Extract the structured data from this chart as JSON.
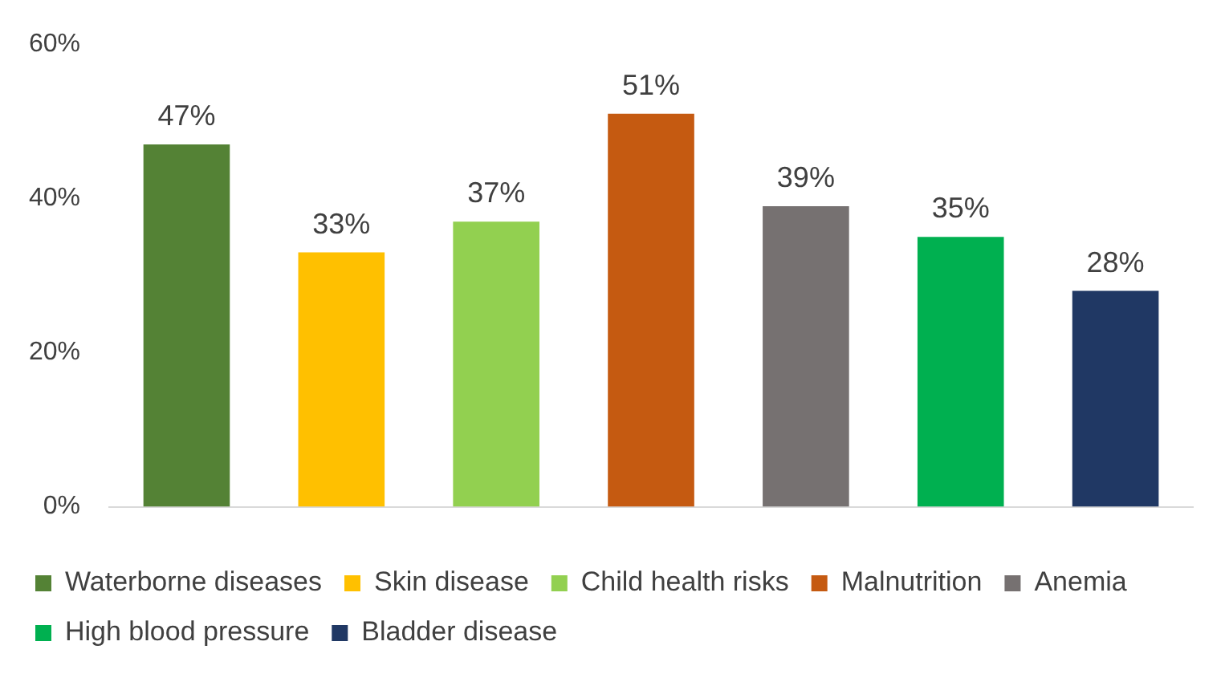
{
  "chart_data": {
    "type": "bar",
    "categories": [
      null,
      null,
      null,
      null,
      null,
      null,
      null
    ],
    "series": [
      {
        "name": "Waterborne diseases",
        "color": "#548235",
        "values": [
          47,
          null,
          null,
          null,
          null,
          null,
          null
        ],
        "value_labels": [
          "47%",
          null,
          null,
          null,
          null,
          null,
          null
        ]
      },
      {
        "name": "Skin disease",
        "color": "#ffc000",
        "values": [
          null,
          33,
          null,
          null,
          null,
          null,
          null
        ],
        "value_labels": [
          null,
          "33%",
          null,
          null,
          null,
          null,
          null
        ]
      },
      {
        "name": "Child health risks",
        "color": "#92d050",
        "values": [
          null,
          null,
          37,
          null,
          null,
          null,
          null
        ],
        "value_labels": [
          null,
          null,
          "37%",
          null,
          null,
          null,
          null
        ]
      },
      {
        "name": "Malnutrition",
        "color": "#c55a11",
        "values": [
          null,
          null,
          null,
          51,
          null,
          null,
          null
        ],
        "value_labels": [
          null,
          null,
          null,
          "51%",
          null,
          null,
          null
        ]
      },
      {
        "name": "Anemia",
        "color": "#767171",
        "values": [
          null,
          null,
          null,
          null,
          39,
          null,
          null
        ],
        "value_labels": [
          null,
          null,
          null,
          null,
          "39%",
          null,
          null
        ]
      },
      {
        "name": "High blood pressure",
        "color": "#00b050",
        "values": [
          null,
          null,
          null,
          null,
          null,
          35,
          null
        ],
        "value_labels": [
          null,
          null,
          null,
          null,
          null,
          "35%",
          null
        ]
      },
      {
        "name": "Bladder disease",
        "color": "#203864",
        "values": [
          null,
          null,
          null,
          null,
          null,
          null,
          28
        ],
        "value_labels": [
          null,
          null,
          null,
          null,
          null,
          null,
          "28%"
        ]
      }
    ],
    "ylim": [
      0,
      60
    ],
    "yticks": [
      {
        "value": 0,
        "label": "0%"
      },
      {
        "value": 20,
        "label": "20%"
      },
      {
        "value": 40,
        "label": "40%"
      },
      {
        "value": 60,
        "label": "60%"
      }
    ],
    "grid": false,
    "legend": "bottom"
  }
}
